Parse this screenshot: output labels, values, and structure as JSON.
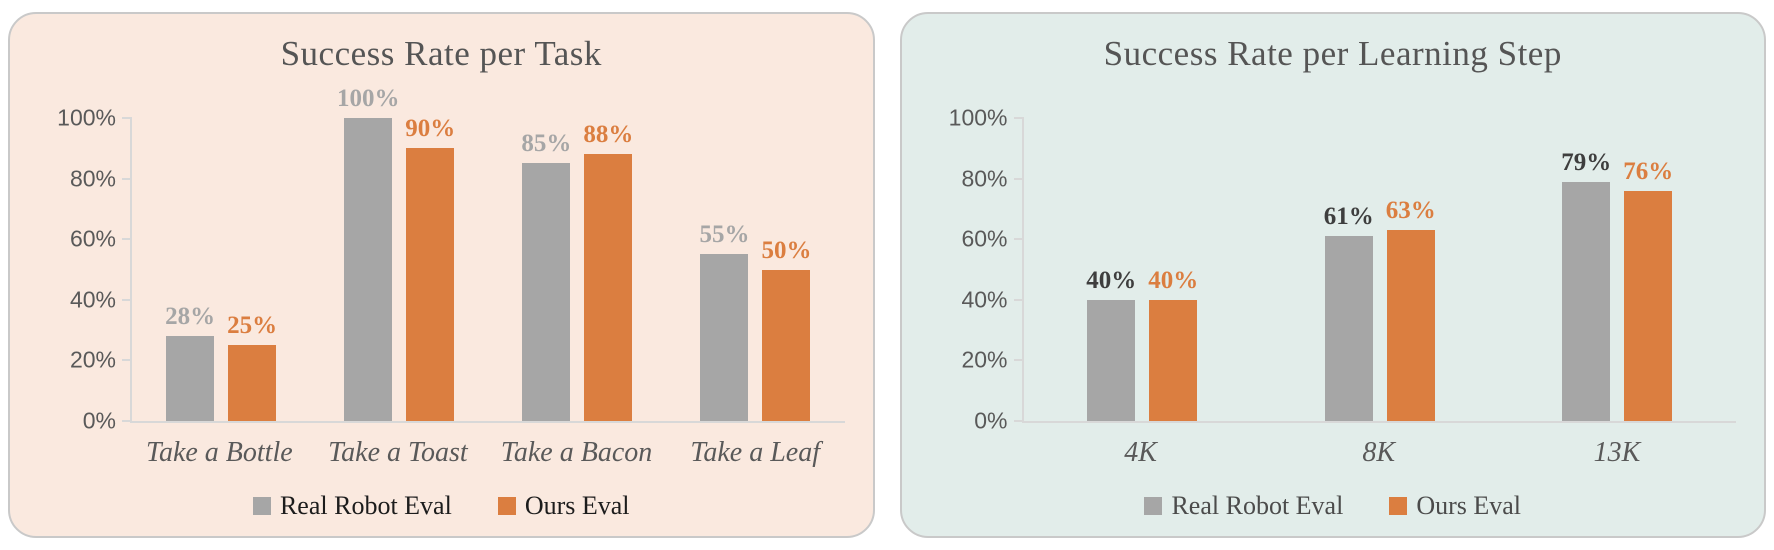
{
  "page": {
    "background": "#FFFFFF",
    "panel_border_color": "#C9C9C9"
  },
  "palette": {
    "gray_series": "#A6A6A6",
    "orange_series": "#DB7E40",
    "axis_line": "#D8D8D8",
    "axis_tick_text": "#595959",
    "category_text": "#595959",
    "title_text": "#555555"
  },
  "charts": [
    {
      "title": "Success Rate per Task",
      "panel_bg": "#FAE9DF",
      "legend_text_color": "#1C1C1C",
      "chart_data": {
        "type": "bar",
        "title": "Success Rate per Task",
        "categories": [
          "Take a Bottle",
          "Take a Toast",
          "Take a Bacon",
          "Take a Leaf"
        ],
        "series": [
          {
            "name": "Real Robot Eval",
            "values": [
              28,
              100,
              85,
              55
            ],
            "color": "#A6A6A6",
            "label_color": "#A6A6A6"
          },
          {
            "name": "Ours Eval",
            "values": [
              25,
              90,
              88,
              50
            ],
            "color": "#DB7E40",
            "label_color": "#DB7E40"
          }
        ],
        "xlabel": "",
        "ylabel": "",
        "ylim": [
          0,
          100
        ],
        "yticks": [
          0,
          20,
          40,
          60,
          80,
          100
        ],
        "ytick_suffix": "%",
        "value_label_suffix": "%",
        "grid": false,
        "legend_position": "bottom"
      }
    },
    {
      "title": "Success Rate per Learning Step",
      "panel_bg": "#E2EDEA",
      "legend_text_color": "#4B4B4B",
      "chart_data": {
        "type": "bar",
        "title": "Success Rate per Learning Step",
        "categories": [
          "4K",
          "8K",
          "13K"
        ],
        "series": [
          {
            "name": "Real Robot Eval",
            "values": [
              40,
              61,
              79
            ],
            "color": "#A6A6A6",
            "label_color": "#3E3E3E"
          },
          {
            "name": "Ours Eval",
            "values": [
              40,
              63,
              76
            ],
            "color": "#DB7E40",
            "label_color": "#DB7E40"
          }
        ],
        "xlabel": "",
        "ylabel": "",
        "ylim": [
          0,
          100
        ],
        "yticks": [
          0,
          20,
          40,
          60,
          80,
          100
        ],
        "ytick_suffix": "%",
        "value_label_suffix": "%",
        "grid": false,
        "legend_position": "bottom"
      }
    }
  ]
}
